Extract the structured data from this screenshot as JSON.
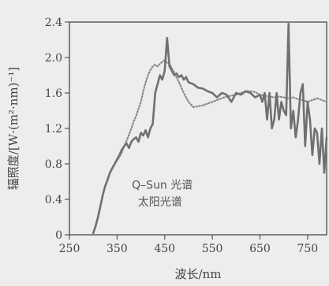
{
  "chart_data": {
    "type": "line",
    "title": "",
    "xlabel": "波长/nm",
    "ylabel": "辐照度/[W·(m²·nm)⁻¹]",
    "xlim": [
      250,
      790
    ],
    "ylim": [
      0,
      2.4
    ],
    "x_ticks": [
      250,
      350,
      450,
      550,
      650,
      750
    ],
    "y_ticks": [
      0,
      0.4,
      0.8,
      1.2,
      1.6,
      2.0,
      2.4
    ],
    "x_tick_labels": [
      "250",
      "350",
      "450",
      "550",
      "650",
      "750"
    ],
    "y_tick_labels": [
      "0",
      "0.4",
      "0.8",
      "1.2",
      "1.6",
      "2.0",
      "2.4"
    ],
    "grid": false,
    "legend_position": "center",
    "annotations": [
      {
        "text": "Q–Sun 光谱",
        "x": 445,
        "y": 0.52
      },
      {
        "text": "太阳光谱",
        "x": 440,
        "y": 0.33
      }
    ],
    "series": [
      {
        "name": "Q–Sun 光谱",
        "color": "#8a8a8a",
        "style": "dotted",
        "x": [
          300,
          305,
          310,
          315,
          320,
          325,
          330,
          335,
          340,
          345,
          350,
          355,
          360,
          365,
          370,
          375,
          380,
          385,
          390,
          395,
          400,
          405,
          410,
          415,
          420,
          425,
          430,
          435,
          440,
          445,
          450,
          455,
          460,
          465,
          470,
          480,
          490,
          500,
          510,
          520,
          530,
          540,
          550,
          560,
          570,
          580,
          590,
          600,
          610,
          620,
          630,
          640,
          650,
          660,
          670,
          680,
          690,
          700,
          710,
          720,
          730,
          740,
          750,
          760,
          770,
          780,
          790
        ],
        "y": [
          0.02,
          0.1,
          0.2,
          0.32,
          0.45,
          0.55,
          0.63,
          0.7,
          0.76,
          0.8,
          0.84,
          0.88,
          0.93,
          1.0,
          1.06,
          1.13,
          1.2,
          1.28,
          1.34,
          1.42,
          1.5,
          1.62,
          1.72,
          1.8,
          1.86,
          1.9,
          1.92,
          1.9,
          1.93,
          1.95,
          1.97,
          1.94,
          1.93,
          1.88,
          1.83,
          1.72,
          1.6,
          1.5,
          1.44,
          1.45,
          1.46,
          1.48,
          1.5,
          1.52,
          1.54,
          1.56,
          1.57,
          1.58,
          1.6,
          1.62,
          1.62,
          1.61,
          1.58,
          1.57,
          1.56,
          1.55,
          1.56,
          1.55,
          1.54,
          1.55,
          1.53,
          1.52,
          1.5,
          1.52,
          1.54,
          1.52,
          1.5
        ]
      },
      {
        "name": "太阳光谱",
        "color": "#707070",
        "style": "solid",
        "x": [
          300,
          305,
          310,
          315,
          320,
          325,
          330,
          335,
          340,
          345,
          350,
          355,
          360,
          365,
          370,
          375,
          380,
          385,
          390,
          395,
          400,
          405,
          410,
          415,
          420,
          425,
          430,
          435,
          440,
          445,
          450,
          455,
          460,
          465,
          470,
          475,
          480,
          485,
          490,
          495,
          500,
          510,
          520,
          530,
          540,
          550,
          560,
          570,
          580,
          590,
          600,
          610,
          620,
          630,
          640,
          650,
          655,
          660,
          665,
          670,
          675,
          680,
          685,
          690,
          695,
          700,
          705,
          710,
          715,
          720,
          725,
          730,
          735,
          740,
          745,
          750,
          755,
          760,
          765,
          770,
          775,
          780,
          785,
          790
        ],
        "y": [
          0.02,
          0.1,
          0.2,
          0.32,
          0.45,
          0.55,
          0.62,
          0.7,
          0.75,
          0.8,
          0.85,
          0.9,
          0.96,
          1.0,
          1.03,
          0.98,
          1.05,
          1.08,
          1.1,
          1.05,
          1.15,
          1.12,
          1.18,
          1.1,
          1.2,
          1.25,
          1.6,
          1.7,
          1.8,
          1.75,
          1.85,
          2.22,
          1.9,
          1.85,
          1.8,
          1.82,
          1.78,
          1.8,
          1.75,
          1.78,
          1.72,
          1.7,
          1.66,
          1.65,
          1.62,
          1.6,
          1.55,
          1.6,
          1.58,
          1.5,
          1.6,
          1.58,
          1.62,
          1.6,
          1.55,
          1.58,
          1.5,
          1.6,
          1.3,
          1.6,
          1.2,
          1.3,
          1.6,
          1.3,
          1.5,
          1.4,
          1.35,
          2.38,
          1.2,
          1.4,
          1.1,
          1.3,
          1.6,
          1.7,
          1.0,
          1.5,
          1.3,
          0.9,
          1.2,
          1.15,
          0.8,
          1.2,
          0.7,
          1.1
        ]
      }
    ]
  }
}
